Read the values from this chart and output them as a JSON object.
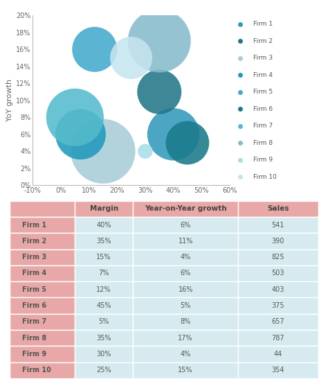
{
  "firms": [
    "Firm 1",
    "Firm 2",
    "Firm 3",
    "Firm 4",
    "Firm 5",
    "Firm 6",
    "Firm 7",
    "Firm 8",
    "Firm 9",
    "Firm 10"
  ],
  "margin": [
    0.4,
    0.35,
    0.15,
    0.07,
    0.12,
    0.45,
    0.05,
    0.35,
    0.3,
    0.25
  ],
  "yoy_growth": [
    0.06,
    0.11,
    0.04,
    0.06,
    0.16,
    0.05,
    0.08,
    0.17,
    0.04,
    0.15
  ],
  "sales": [
    541,
    390,
    825,
    503,
    403,
    375,
    657,
    787,
    44,
    354
  ],
  "colors": [
    "#3399BB",
    "#227788",
    "#A8CDD8",
    "#2299BB",
    "#44AACC",
    "#1A7A8A",
    "#55BBCC",
    "#88BBCC",
    "#AADDE8",
    "#C5E5EE"
  ],
  "ylabel": "YoY growth",
  "xlim": [
    -0.1,
    0.6
  ],
  "ylim": [
    0.0,
    0.2
  ],
  "xticks": [
    -0.1,
    0.0,
    0.1,
    0.2,
    0.3,
    0.4,
    0.5,
    0.6
  ],
  "yticks": [
    0.0,
    0.02,
    0.04,
    0.06,
    0.08,
    0.1,
    0.12,
    0.14,
    0.16,
    0.18,
    0.2
  ],
  "table_header_bg": "#E8A8A8",
  "table_data_bg": "#D6EAF0",
  "table_label_bg": "#E8A8A8",
  "col_header_values": [
    "Margin",
    "Year-on-Year growth",
    "Sales"
  ],
  "margin_str": [
    "40%",
    "35%",
    "15%",
    "7%",
    "12%",
    "45%",
    "5%",
    "35%",
    "30%",
    "25%"
  ],
  "yoy_str": [
    "6%",
    "11%",
    "4%",
    "6%",
    "16%",
    "5%",
    "8%",
    "17%",
    "4%",
    "15%"
  ],
  "sales_str": [
    "541",
    "390",
    "825",
    "503",
    "403",
    "375",
    "657",
    "787",
    "44",
    "354"
  ],
  "bg_color": "#FFFFFF",
  "legend_dot_colors": [
    "#3399BB",
    "#227788",
    "#A8CDD8",
    "#2299BB",
    "#44AACC",
    "#1A7A8A",
    "#55BBCC",
    "#88BBCC",
    "#AADDE8",
    "#C5E5EE"
  ]
}
